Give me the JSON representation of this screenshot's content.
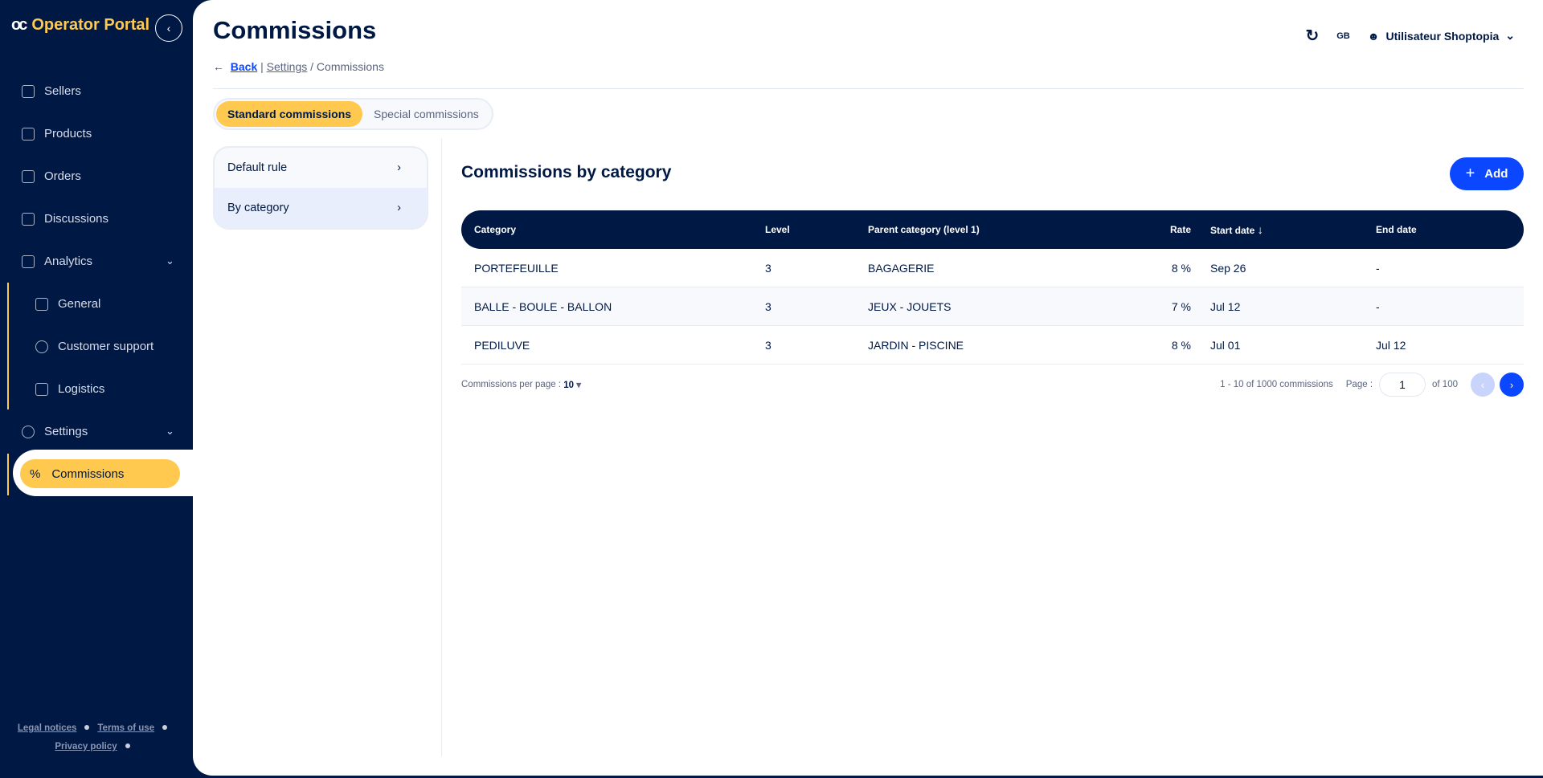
{
  "app": {
    "logo_mark": "oc",
    "title": "Operator Portal"
  },
  "sidebar": {
    "items": [
      {
        "label": "Sellers",
        "icon": "seller-icon"
      },
      {
        "label": "Products",
        "icon": "products-icon"
      },
      {
        "label": "Orders",
        "icon": "orders-icon"
      },
      {
        "label": "Discussions",
        "icon": "chat-icon"
      },
      {
        "label": "Analytics",
        "icon": "dashboard-icon"
      },
      {
        "label": "General",
        "icon": "store-icon"
      },
      {
        "label": "Customer support",
        "icon": "headset-icon"
      },
      {
        "label": "Logistics",
        "icon": "truck-icon"
      },
      {
        "label": "Settings",
        "icon": "gear-icon"
      },
      {
        "label": "Commissions",
        "icon": "percent-icon"
      }
    ],
    "footer": {
      "legal": "Legal notices",
      "terms": "Terms of use",
      "privacy": "Privacy policy"
    }
  },
  "header": {
    "title": "Commissions",
    "back": "Back",
    "crumb_settings": "Settings",
    "crumb_current": "/ Commissions",
    "lang": "GB",
    "user": "Utilisateur Shoptopia"
  },
  "tabs": [
    "Standard commissions",
    "Special commissions"
  ],
  "rules": [
    "Default rule",
    "By category"
  ],
  "section": {
    "title": "Commissions by category",
    "add": "Add"
  },
  "table": {
    "columns": [
      "Category",
      "Level",
      "Parent category (level 1)",
      "Rate",
      "Start date",
      "End date"
    ],
    "rows": [
      [
        "PORTEFEUILLE",
        "3",
        "BAGAGERIE",
        "8 %",
        "Sep 26",
        "-"
      ],
      [
        "BALLE - BOULE - BALLON",
        "3",
        "JEUX - JOUETS",
        "7 %",
        "Jul 12",
        "-"
      ],
      [
        "PEDILUVE",
        "3",
        "JARDIN - PISCINE",
        "8 %",
        "Jul 01",
        "Jul 12"
      ]
    ]
  },
  "pagination": {
    "per_page_label": "Commissions per page :",
    "per_page": "10",
    "range": "1 - 10 of 1000 commissions",
    "page_label": "Page :",
    "page": "1",
    "of": "of 100"
  },
  "colors": {
    "navy": "#001944",
    "accent": "#ffc94f",
    "primary": "#0a47ff"
  }
}
